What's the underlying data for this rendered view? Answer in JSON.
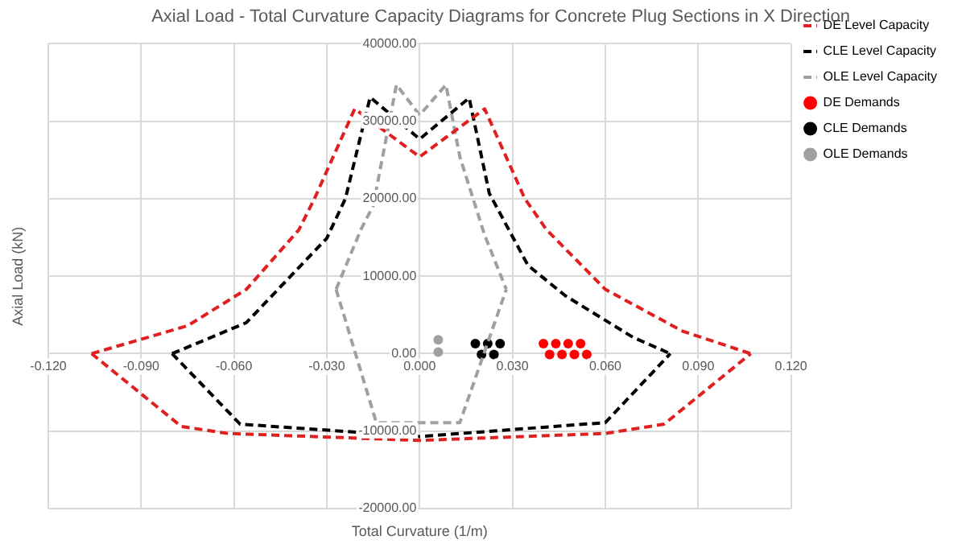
{
  "chart_data": {
    "type": "scatter",
    "title": "Axial Load - Total Curvature Capacity Diagrams for Concrete Plug Sections in X Direction",
    "xlabel": "Total Curvature (1/m)",
    "ylabel": "Axial Load (kN)",
    "xlim": [
      -0.12,
      0.12
    ],
    "ylim": [
      -20000,
      40000
    ],
    "xticks": [
      {
        "value": -0.12,
        "label": "-0.120"
      },
      {
        "value": -0.09,
        "label": "-0.090"
      },
      {
        "value": -0.06,
        "label": "-0.060"
      },
      {
        "value": -0.03,
        "label": "-0.030"
      },
      {
        "value": 0,
        "label": "0.000"
      },
      {
        "value": 0.03,
        "label": "0.030"
      },
      {
        "value": 0.06,
        "label": "0.060"
      },
      {
        "value": 0.09,
        "label": "0.090"
      },
      {
        "value": 0.12,
        "label": "0.120"
      }
    ],
    "yticks": [
      {
        "value": -20000,
        "label": "-20000.00"
      },
      {
        "value": -10000,
        "label": "-10000.00"
      },
      {
        "value": 0,
        "label": "0.00"
      },
      {
        "value": 10000,
        "label": "10000.00"
      },
      {
        "value": 20000,
        "label": "20000.00"
      },
      {
        "value": 30000,
        "label": "30000.00"
      },
      {
        "value": 40000,
        "label": "40000.00"
      }
    ],
    "grid": true,
    "legend": "top right",
    "series": [
      {
        "name": "DE Level Capacity",
        "type": "line",
        "line_style": "dashed",
        "marker": "none",
        "color": "#e02020",
        "x": [
          -0.106,
          -0.075,
          -0.056,
          -0.039,
          -0.034,
          -0.021,
          0,
          0.021,
          0.034,
          0.041,
          0.06,
          0.085,
          0.107
        ],
        "values": [
          0,
          3600,
          8300,
          16000,
          20000,
          31600,
          25400,
          31600,
          20000,
          16000,
          8300,
          2900,
          0
        ]
      },
      {
        "type": "line",
        "line_style": "dashed",
        "marker": "none",
        "color": "#e02020",
        "x": [
          -0.106,
          -0.077,
          -0.062,
          0,
          0.06,
          0.079,
          0.107
        ],
        "values": [
          0,
          -9400,
          -10300,
          -11200,
          -10300,
          -9100,
          0
        ]
      },
      {
        "name": "CLE Level Capacity",
        "type": "line",
        "line_style": "dashed",
        "marker": "none",
        "color": "#000000",
        "x": [
          -0.08,
          -0.056,
          -0.03,
          -0.024,
          -0.016,
          0,
          0.016,
          0.0225,
          0.035,
          0.047,
          0.069,
          0.081
        ],
        "values": [
          0,
          4000,
          14900,
          20000,
          33100,
          27700,
          33000,
          20700,
          11400,
          7500,
          2100,
          0
        ]
      },
      {
        "type": "line",
        "line_style": "dashed",
        "marker": "none",
        "color": "#000000",
        "x": [
          -0.08,
          -0.058,
          0,
          0.06,
          0.081
        ],
        "values": [
          0,
          -9100,
          -10700,
          -8900,
          0
        ]
      },
      {
        "name": "OLE Level Capacity",
        "type": "line",
        "line_style": "dashed",
        "marker": "none",
        "color": "#a0a0a0",
        "x": [
          -0.027,
          -0.019,
          -0.015,
          -0.0075,
          0,
          0.0085,
          0.013,
          0.021,
          0.028
        ],
        "values": [
          8300,
          16000,
          19100,
          34700,
          30800,
          34700,
          25400,
          15300,
          8300
        ]
      },
      {
        "type": "line",
        "line_style": "dashed",
        "marker": "none",
        "color": "#a0a0a0",
        "x": [
          -0.027,
          -0.014,
          0.013,
          0.028
        ],
        "values": [
          8300,
          -8900,
          -8900,
          8300
        ]
      },
      {
        "name": "DE Demands",
        "type": "scatter",
        "marker": "circle",
        "color": "#ff0000",
        "x": [
          0.04,
          0.044,
          0.048,
          0.052,
          0.042,
          0.046,
          0.05,
          0.054
        ],
        "values": [
          1300,
          1300,
          1300,
          1300,
          -100,
          -100,
          -100,
          -100
        ]
      },
      {
        "name": "CLE Demands",
        "type": "scatter",
        "marker": "circle",
        "color": "#000000",
        "x": [
          0.018,
          0.022,
          0.026,
          0.02,
          0.024
        ],
        "values": [
          1300,
          1300,
          1300,
          -100,
          -100
        ]
      },
      {
        "name": "OLE Demands",
        "type": "scatter",
        "marker": "circle",
        "color": "#a0a0a0",
        "x": [
          0.006,
          0.006
        ],
        "values": [
          1800,
          200
        ]
      }
    ]
  }
}
